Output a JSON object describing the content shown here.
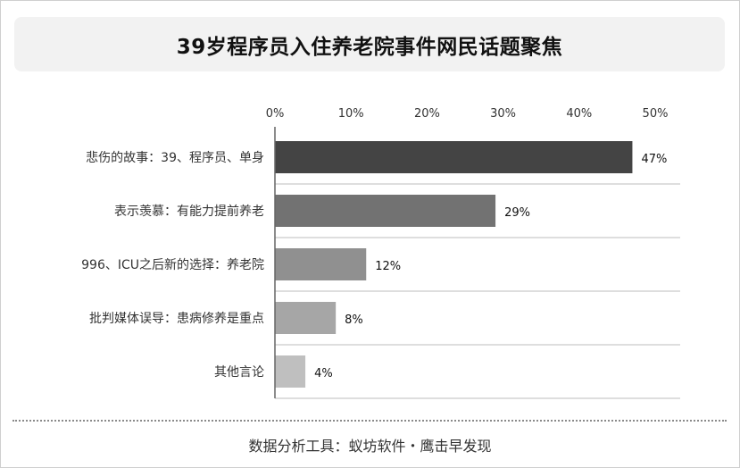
{
  "title": "39岁程序员入住养老院事件网民话题聚焦",
  "footer": "数据分析工具：蚁坊软件・鹰击早发现",
  "chart_data": {
    "type": "bar",
    "orientation": "horizontal",
    "title": "39岁程序员入住养老院事件网民话题聚焦",
    "categories": [
      "悲伤的故事：39、程序员、单身",
      "表示羡慕：有能力提前养老",
      "996、ICU之后新的选择：养老院",
      "批判媒体误导：患病修养是重点",
      "其他言论"
    ],
    "values": [
      47,
      29,
      12,
      8,
      4
    ],
    "value_labels": [
      "47%",
      "29%",
      "12%",
      "8%",
      "4%"
    ],
    "bar_colors": [
      "#444444",
      "#727272",
      "#909090",
      "#a6a6a6",
      "#bfbfbf"
    ],
    "x_ticks": [
      "0%",
      "10%",
      "20%",
      "30%",
      "40%",
      "50%"
    ],
    "xlim": [
      0,
      50
    ],
    "axis_position": "top",
    "grid": "horizontal separators"
  }
}
